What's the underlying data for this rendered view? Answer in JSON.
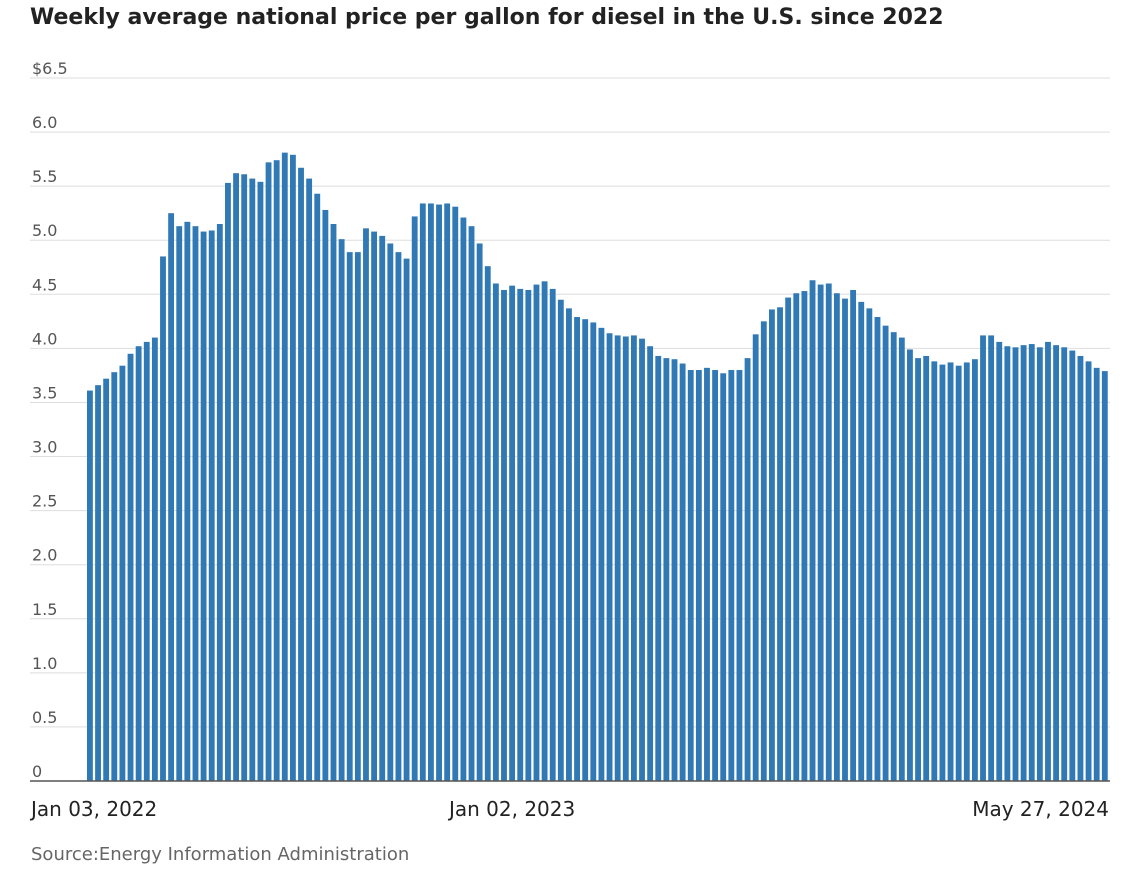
{
  "chart_data": {
    "type": "bar",
    "title": "Weekly average national price per gallon for diesel in the U.S. since 2022",
    "source": "Source:Energy Information Administration",
    "ylim": [
      0,
      6.5
    ],
    "yticks": [
      {
        "value": 0,
        "label": "0"
      },
      {
        "value": 0.5,
        "label": "0.5"
      },
      {
        "value": 1.0,
        "label": "1.0"
      },
      {
        "value": 1.5,
        "label": "1.5"
      },
      {
        "value": 2.0,
        "label": "2.0"
      },
      {
        "value": 2.5,
        "label": "2.5"
      },
      {
        "value": 3.0,
        "label": "3.0"
      },
      {
        "value": 3.5,
        "label": "3.5"
      },
      {
        "value": 4.0,
        "label": "4.0"
      },
      {
        "value": 4.5,
        "label": "4.5"
      },
      {
        "value": 5.0,
        "label": "5.0"
      },
      {
        "value": 5.5,
        "label": "5.5"
      },
      {
        "value": 6.0,
        "label": "6.0"
      },
      {
        "value": 6.5,
        "label": "$6.5"
      }
    ],
    "xticks": [
      {
        "index": 0,
        "label": "Jan 03, 2022"
      },
      {
        "index": 52,
        "label": "Jan 02, 2023"
      },
      {
        "index": 125,
        "label": "May 27, 2024"
      }
    ],
    "grid": true,
    "color": "#3179b5",
    "values": [
      3.61,
      3.66,
      3.72,
      3.78,
      3.84,
      3.95,
      4.02,
      4.06,
      4.1,
      4.85,
      5.25,
      5.13,
      5.17,
      5.13,
      5.08,
      5.09,
      5.15,
      5.53,
      5.62,
      5.61,
      5.57,
      5.54,
      5.72,
      5.74,
      5.81,
      5.79,
      5.67,
      5.57,
      5.43,
      5.28,
      5.15,
      5.01,
      4.89,
      4.89,
      5.11,
      5.08,
      5.04,
      4.97,
      4.89,
      4.83,
      5.22,
      5.34,
      5.34,
      5.33,
      5.34,
      5.31,
      5.21,
      5.13,
      4.97,
      4.76,
      4.6,
      4.54,
      4.58,
      4.55,
      4.54,
      4.59,
      4.62,
      4.55,
      4.45,
      4.37,
      4.29,
      4.27,
      4.24,
      4.19,
      4.14,
      4.12,
      4.11,
      4.12,
      4.09,
      4.02,
      3.93,
      3.91,
      3.9,
      3.86,
      3.8,
      3.8,
      3.82,
      3.8,
      3.77,
      3.8,
      3.8,
      3.91,
      4.13,
      4.25,
      4.36,
      4.38,
      4.47,
      4.51,
      4.53,
      4.63,
      4.59,
      4.6,
      4.51,
      4.46,
      4.54,
      4.43,
      4.37,
      4.29,
      4.21,
      4.15,
      4.1,
      3.99,
      3.91,
      3.93,
      3.88,
      3.85,
      3.87,
      3.84,
      3.87,
      3.9,
      4.12,
      4.12,
      4.06,
      4.02,
      4.01,
      4.03,
      4.04,
      4.01,
      4.06,
      4.03,
      4.01,
      3.98,
      3.93,
      3.88,
      3.82,
      3.79
    ]
  }
}
